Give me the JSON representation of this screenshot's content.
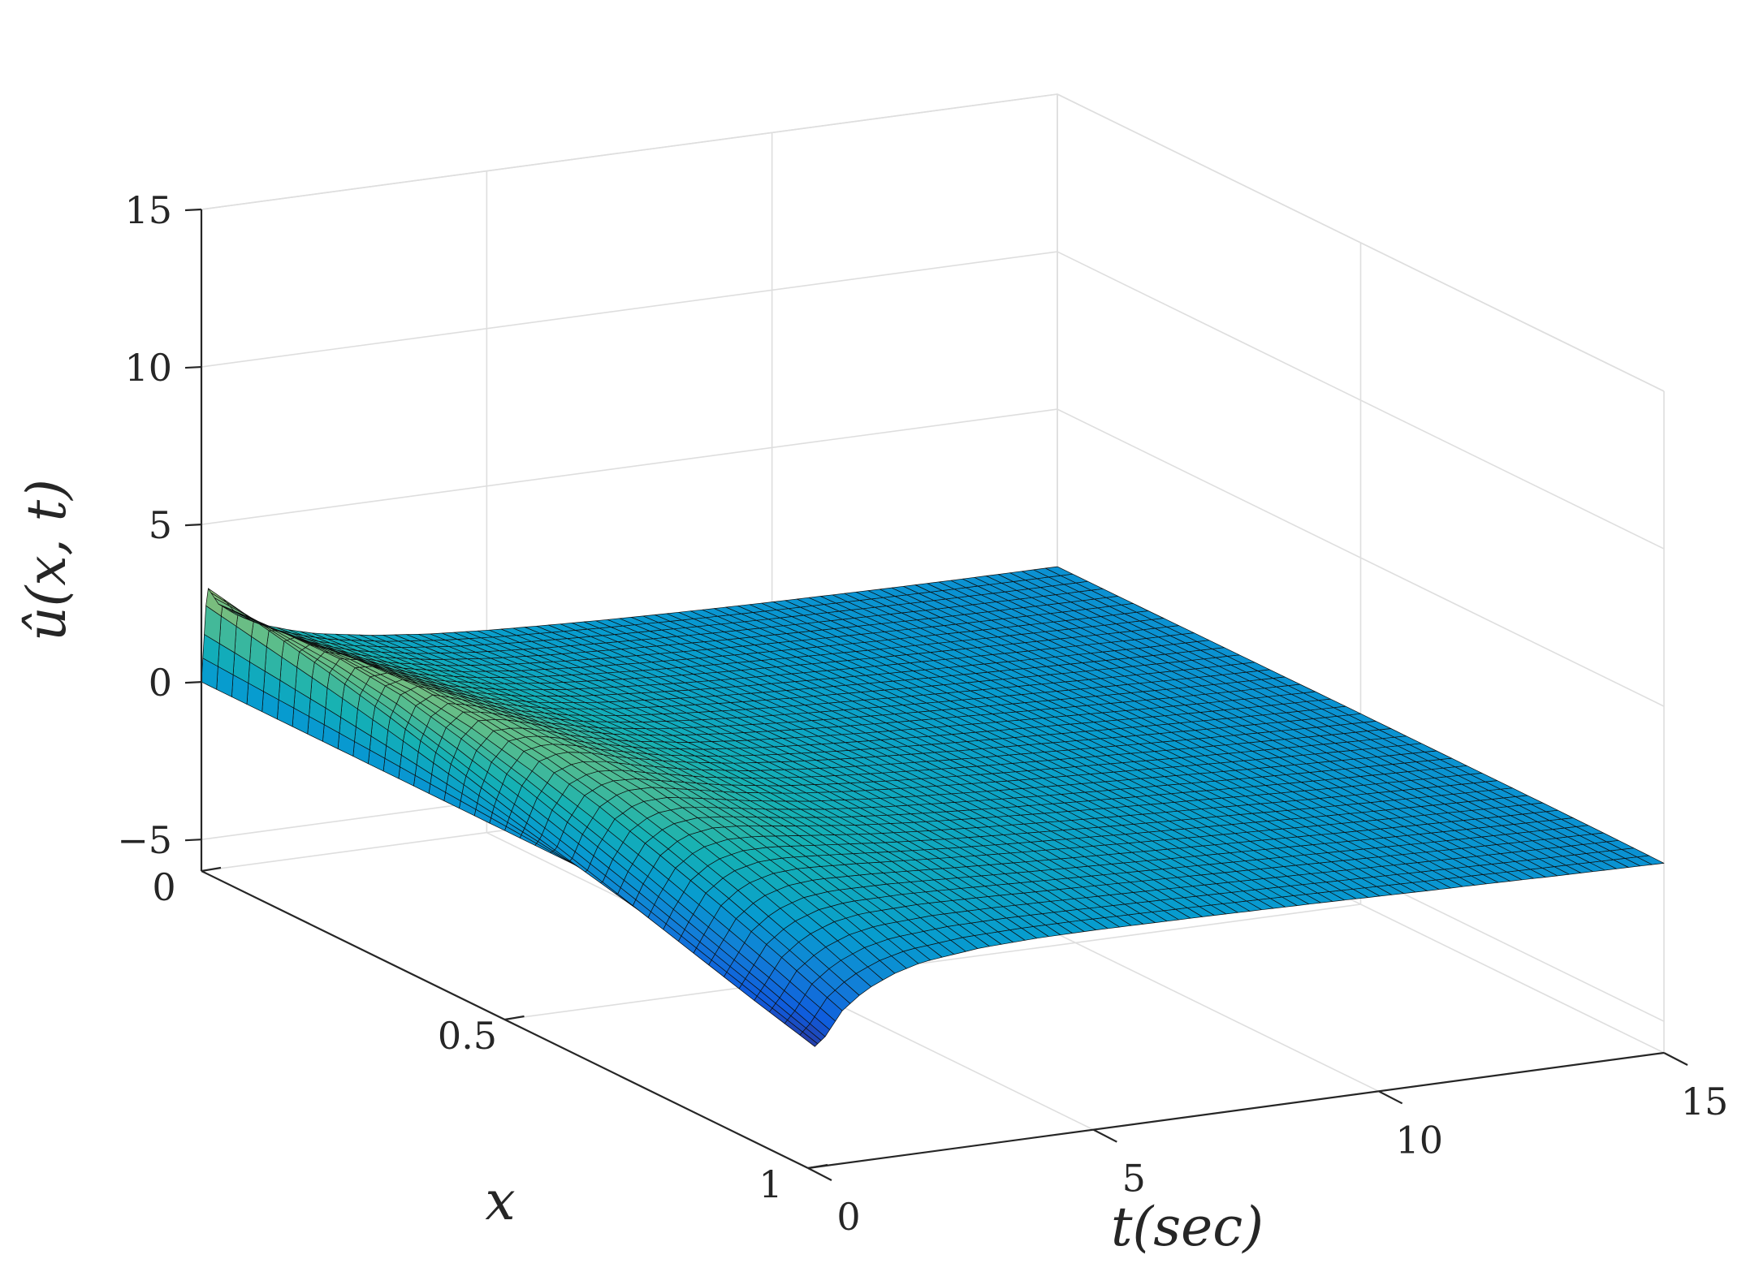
{
  "chart_data": {
    "type": "surface",
    "title": "",
    "xlabel": "t(sec)",
    "ylabel": "x",
    "zlabel": "û(x, t)",
    "xlim": [
      0,
      15
    ],
    "ylim": [
      0,
      1
    ],
    "zlim": [
      -6,
      15
    ],
    "x_ticks": [
      "0",
      "5",
      "10",
      "15"
    ],
    "y_ticks": [
      "0",
      "0.5",
      "1"
    ],
    "z_ticks": [
      "15",
      "10",
      "5",
      "0",
      "−5"
    ],
    "grid": true,
    "colormap": "parula",
    "surface": {
      "x_samples": [
        0,
        0.1,
        0.3,
        0.6,
        1,
        1.5,
        2,
        3,
        4,
        5,
        6,
        7,
        8,
        9,
        10,
        11,
        12,
        13,
        14,
        15
      ],
      "y_samples": [
        0,
        0.1,
        0.2,
        0.3,
        0.4,
        0.5,
        0.6,
        0.7,
        0.8,
        0.9,
        1
      ],
      "values": [
        [
          0,
          3.0,
          2.4,
          2.0,
          1.6,
          1.3,
          1.05,
          0.75,
          0.55,
          0.42,
          0.33,
          0.25,
          0.19,
          0.14,
          0.1,
          0.07,
          0.04,
          0.02,
          0.01,
          0
        ],
        [
          0,
          2.55,
          2.5,
          2.2,
          1.85,
          1.5,
          1.25,
          0.92,
          0.72,
          0.58,
          0.48,
          0.39,
          0.31,
          0.25,
          0.19,
          0.14,
          0.09,
          0.06,
          0.03,
          0.01
        ],
        [
          0,
          2.1,
          2.55,
          2.45,
          2.1,
          1.75,
          1.45,
          1.1,
          0.88,
          0.73,
          0.6,
          0.5,
          0.42,
          0.34,
          0.27,
          0.21,
          0.15,
          0.1,
          0.05,
          0.02
        ],
        [
          0,
          1.6,
          2.35,
          2.55,
          2.3,
          1.95,
          1.65,
          1.25,
          1.0,
          0.84,
          0.7,
          0.59,
          0.5,
          0.41,
          0.33,
          0.26,
          0.19,
          0.13,
          0.07,
          0.03
        ],
        [
          0,
          1.05,
          1.9,
          2.4,
          2.35,
          2.1,
          1.8,
          1.38,
          1.1,
          0.92,
          0.78,
          0.66,
          0.56,
          0.47,
          0.38,
          0.3,
          0.22,
          0.15,
          0.09,
          0.04
        ],
        [
          0,
          0.5,
          1.35,
          2.05,
          2.25,
          2.1,
          1.85,
          1.45,
          1.16,
          0.97,
          0.82,
          0.7,
          0.59,
          0.5,
          0.41,
          0.32,
          0.24,
          0.17,
          0.1,
          0.05
        ],
        [
          0,
          -0.05,
          0.75,
          1.55,
          1.95,
          1.95,
          1.78,
          1.42,
          1.15,
          0.97,
          0.83,
          0.71,
          0.6,
          0.51,
          0.42,
          0.33,
          0.25,
          0.18,
          0.11,
          0.05
        ],
        [
          0,
          -0.6,
          0.12,
          0.95,
          1.45,
          1.6,
          1.55,
          1.3,
          1.08,
          0.92,
          0.79,
          0.68,
          0.58,
          0.49,
          0.41,
          0.32,
          0.24,
          0.17,
          0.11,
          0.05
        ],
        [
          0,
          -1.15,
          -0.55,
          0.3,
          0.85,
          1.1,
          1.15,
          1.05,
          0.92,
          0.8,
          0.7,
          0.61,
          0.52,
          0.44,
          0.37,
          0.29,
          0.22,
          0.16,
          0.1,
          0.05
        ],
        [
          0,
          -1.7,
          -1.2,
          -0.4,
          0.15,
          0.5,
          0.65,
          0.7,
          0.66,
          0.6,
          0.54,
          0.48,
          0.42,
          0.36,
          0.3,
          0.24,
          0.18,
          0.13,
          0.08,
          0.04
        ],
        [
          0,
          -2.2,
          -1.9,
          -1.15,
          -0.6,
          -0.2,
          0.05,
          0.25,
          0.32,
          0.33,
          0.31,
          0.29,
          0.26,
          0.23,
          0.19,
          0.15,
          0.12,
          0.08,
          0.05,
          0.02
        ]
      ]
    }
  }
}
